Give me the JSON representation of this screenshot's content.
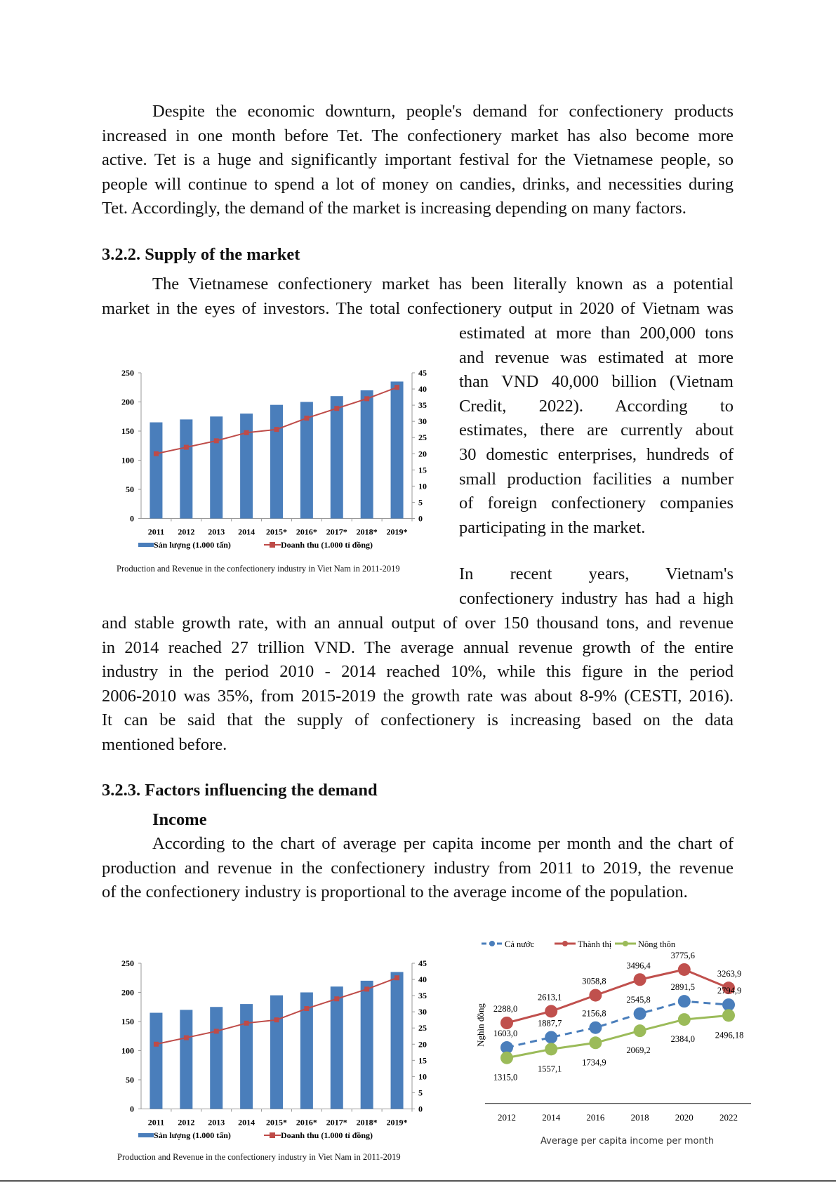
{
  "p1": [
    "Despite the economic downturn, people's demand for confectionery products",
    "increased in one month before Tet. The confectionery market has also become more",
    "active. Tet is a huge and significantly important festival for the Vietnamese people, so",
    "people will continue to spend a lot of money on candies, drinks, and necessities during",
    "Tet. Accordingly, the demand of the market is increasing depending on many factors."
  ],
  "h322": "3.2.2. Supply of the market",
  "p2": [
    "The Vietnamese confectionery market has been literally known as a potential",
    "market in the eyes of investors. The total confectionery output in 2020 of Vietnam was"
  ],
  "p2_right": [
    "estimated at more than 200,000 tons",
    "and revenue was estimated at more",
    "than VND 40,000 billion (Vietnam",
    "Credit, 2022). According to",
    "estimates, there are currently about",
    "30 domestic enterprises, hundreds of",
    "small production facilities a number",
    "of foreign confectionery companies",
    "participating in the market."
  ],
  "p3_right": [
    "In recent years, Vietnam's",
    "confectionery industry has had a high"
  ],
  "p3": [
    "and stable growth rate, with an annual output of over 150 thousand tons, and revenue",
    "in 2014 reached 27 trillion VND. The average annual revenue growth of the entire",
    "industry in the period 2010 - 2014 reached 10%, while this figure in the period",
    "2006-2010 was 35%, from 2015-2019 the growth rate was about 8-9% (CESTI, 2016).",
    "It can be said that the supply of confectionery is increasing based on the data",
    "mentioned before."
  ],
  "h323": "3.2.3. Factors influencing the demand",
  "income_heading": "Income",
  "p4": [
    "According to the chart of average per capita income per month and the chart of",
    "production and revenue in the confectionery industry from 2011 to 2019, the revenue",
    "of the confectionery industry is proportional to the average income of the population."
  ],
  "chart_data": [
    {
      "type": "bar",
      "title": "Production and Revenue in the confectionery industry in Viet Nam in 2011-2019",
      "categories": [
        "2011",
        "2012",
        "2013",
        "2014",
        "2015*",
        "2016*",
        "2017*",
        "2018*",
        "2019*"
      ],
      "series": [
        {
          "name": "Sản lượng (1.000 tấn)",
          "type": "bar",
          "axis": "left",
          "color": "#4a7ebb",
          "values": [
            165,
            170,
            175,
            180,
            195,
            200,
            210,
            220,
            235
          ]
        },
        {
          "name": "Doanh thu (1.000 tỉ đồng)",
          "type": "line",
          "axis": "right",
          "color": "#be4b48",
          "values": [
            20,
            22,
            24,
            26.5,
            27.5,
            31,
            34,
            37,
            40.5
          ]
        }
      ],
      "ylim_left": [
        0,
        250
      ],
      "yticks_left": [
        "0",
        "50",
        "100",
        "150",
        "200",
        "250"
      ],
      "ylim_right": [
        0,
        45
      ],
      "yticks_right": [
        "0",
        "5",
        "10",
        "15",
        "20",
        "25",
        "30",
        "35",
        "40",
        "45"
      ],
      "legend": "bottom"
    },
    {
      "type": "bar",
      "title": "Production and Revenue in the confectionery industry in Viet Nam in 2011-2019",
      "categories": [
        "2011",
        "2012",
        "2013",
        "2014",
        "2015*",
        "2016*",
        "2017*",
        "2018*",
        "2019*"
      ],
      "series": [
        {
          "name": "Sản lượng (1.000 tấn)",
          "type": "bar",
          "axis": "left",
          "color": "#4a7ebb",
          "values": [
            165,
            170,
            175,
            180,
            195,
            200,
            210,
            220,
            235
          ]
        },
        {
          "name": "Doanh thu (1.000 tỉ đồng)",
          "type": "line",
          "axis": "right",
          "color": "#be4b48",
          "values": [
            20,
            22,
            24,
            26.5,
            27.5,
            31,
            34,
            37,
            40.5
          ]
        }
      ],
      "ylim_left": [
        0,
        250
      ],
      "yticks_left": [
        "0",
        "50",
        "100",
        "150",
        "200",
        "250"
      ],
      "ylim_right": [
        0,
        45
      ],
      "yticks_right": [
        "0",
        "5",
        "10",
        "15",
        "20",
        "25",
        "30",
        "35",
        "40",
        "45"
      ],
      "legend": "bottom"
    },
    {
      "type": "line",
      "title": "Average per capita income per month",
      "ylabel": "Nghìn đồng",
      "x": [
        "2012",
        "2014",
        "2016",
        "2018",
        "2020",
        "2022"
      ],
      "series": [
        {
          "name": "Cả nước",
          "color": "#4a7ebb",
          "dashed": true,
          "values": [
            1603.0,
            1887.7,
            2156.8,
            2545.8,
            2891.5,
            2794.9
          ],
          "labels": [
            "1603,0",
            "1887,7",
            "2156,8",
            "2545,8",
            "2891,5",
            "2794,9"
          ]
        },
        {
          "name": "Thành thị",
          "color": "#c0504d",
          "dashed": false,
          "values": [
            2288.0,
            2613.1,
            3058.8,
            3496.4,
            3775.6,
            3263.9
          ],
          "labels": [
            "2288,0",
            "2613,1",
            "3058,8",
            "3496,4",
            "3775,6",
            "3263,9"
          ]
        },
        {
          "name": "Nông thôn",
          "color": "#9bbb59",
          "dashed": false,
          "values": [
            1315.0,
            1557.1,
            1734.9,
            2069.2,
            2384.0,
            2496.18
          ],
          "labels": [
            "1315,0",
            "1557,1",
            "1734,9",
            "2069,2",
            "2384,0",
            "2496,18"
          ]
        }
      ],
      "legend": "top"
    }
  ]
}
